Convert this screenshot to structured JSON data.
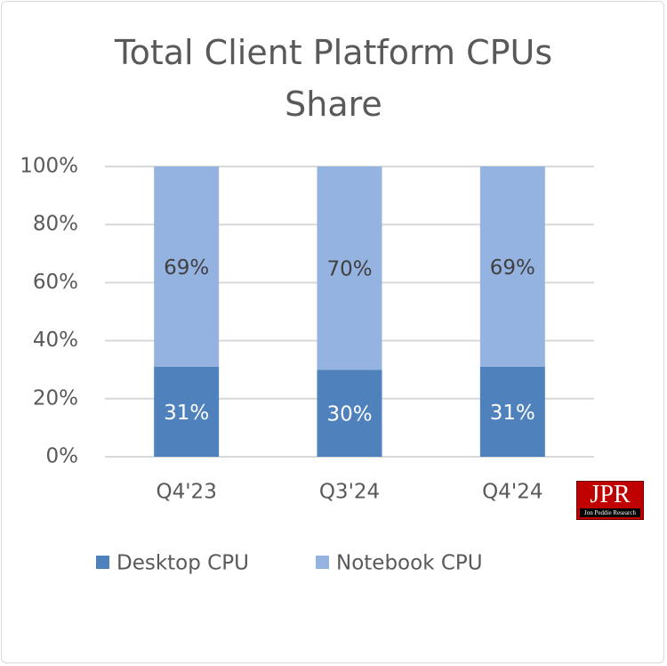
{
  "chart_data": {
    "type": "stacked-bar",
    "title": "Total Client Platform CPUs Share",
    "categories": [
      "Q4'23",
      "Q3'24",
      "Q4'24"
    ],
    "series": [
      {
        "name": "Desktop CPU",
        "color": "#4f81bd",
        "values": [
          31,
          30,
          31
        ],
        "value_labels": [
          "31%",
          "30%",
          "31%"
        ],
        "label_color": "#ffffff"
      },
      {
        "name": "Notebook CPU",
        "color": "#95b3e0",
        "values": [
          69,
          70,
          69
        ],
        "value_labels": [
          "69%",
          "70%",
          "69%"
        ],
        "label_color": "#404040"
      }
    ],
    "ylim": [
      0,
      100
    ],
    "yticks": [
      {
        "value": 0,
        "label": "0%"
      },
      {
        "value": 20,
        "label": "20%"
      },
      {
        "value": 40,
        "label": "40%"
      },
      {
        "value": 60,
        "label": "60%"
      },
      {
        "value": 80,
        "label": "80%"
      },
      {
        "value": 100,
        "label": "100%"
      }
    ],
    "grid": true,
    "legend": "bottom"
  },
  "logo": {
    "title": "JPR",
    "subtitle": "Jon Peddie Research"
  }
}
